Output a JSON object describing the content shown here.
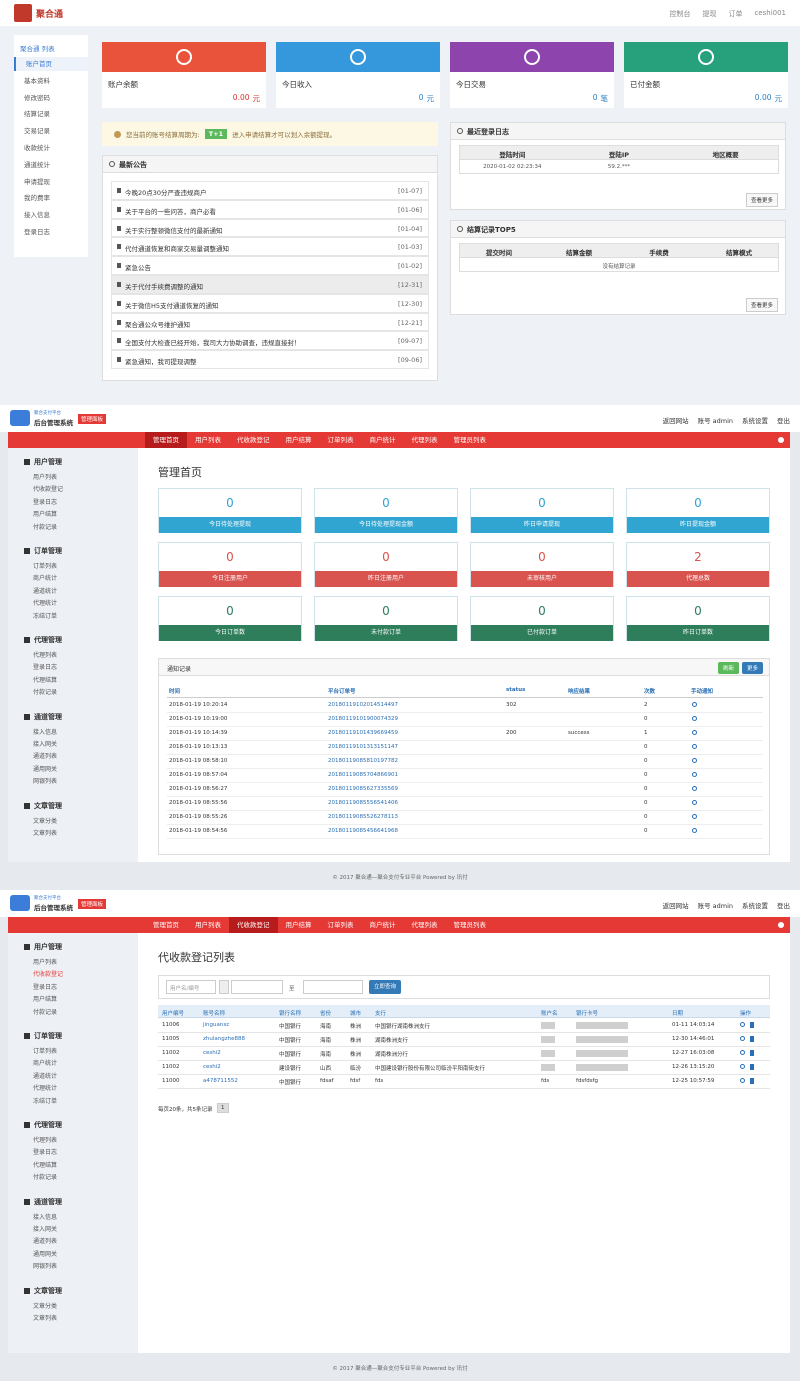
{
  "user_panel": {
    "brand": "聚合通",
    "top_links": [
      "控制台",
      "提现",
      "订单",
      "ceshi001"
    ],
    "sidebar": {
      "title": "聚合通 列表",
      "active": 0,
      "items": [
        "账户首页",
        "基本资料",
        "修改密码",
        "结算记录",
        "交易记录",
        "收款统计",
        "通道统计",
        "申请提现",
        "我的费率",
        "接入信息",
        "登录日志"
      ]
    },
    "cards": [
      {
        "label": "账户余额",
        "value": "0.00",
        "unit": "元",
        "color": "#e9533c",
        "value_color": "#d9342b"
      },
      {
        "label": "今日收入",
        "value": "0",
        "unit": "元",
        "color": "#3598dc",
        "value_color": "#2a7fc1"
      },
      {
        "label": "今日交易",
        "value": "0",
        "unit": "笔",
        "color": "#8e44ad",
        "value_color": "#2a7fc1"
      },
      {
        "label": "已付金额",
        "value": "0.00",
        "unit": "元",
        "color": "#26a17b",
        "value_color": "#2a7fc1"
      }
    ],
    "notice": {
      "prefix": "您当前的账号结算周期为:",
      "badge": "T+1",
      "suffix": "进入申请结算才可以划入余额提现。"
    },
    "announcements": {
      "title": "最新公告",
      "highlight": 5,
      "items": [
        {
          "text": "今晚20点30分严查违规商户",
          "date": "[01-07]"
        },
        {
          "text": "关于平台的一些问答，商户必看",
          "date": "[01-06]"
        },
        {
          "text": "关于实行整顿微信支付的最新通知",
          "date": "[01-04]"
        },
        {
          "text": "代付通道恢复和商家交易量调整通知",
          "date": "[01-03]"
        },
        {
          "text": "紧急公告",
          "date": "[01-02]"
        },
        {
          "text": "关于代付手续费调整的通知",
          "date": "[12-31]"
        },
        {
          "text": "关于微信H5支付通道恢复的通知",
          "date": "[12-30]"
        },
        {
          "text": "聚合通公众号维护通知",
          "date": "[12-21]"
        },
        {
          "text": "全国支付大检查已经开始，我司大力协助调查，违规直接封！",
          "date": "[09-07]"
        },
        {
          "text": "紧急通知，我司提现调整",
          "date": "[09-06]"
        }
      ]
    },
    "login_log": {
      "title": "最近登录日志",
      "headers": [
        "登陆时间",
        "登陆IP",
        "地区概要"
      ],
      "rows": [
        [
          "2020-01-02 02:23:34",
          "59.2.***"
        ]
      ],
      "button": "查看更多"
    },
    "settlements": {
      "title": "结算记录TOP5",
      "headers": [
        "提交时间",
        "结算金额",
        "手续费",
        "结算模式"
      ],
      "empty": "没有结算记录",
      "button": "查看更多"
    }
  },
  "admin_shell": {
    "logo_subtitle": "聚合支付平台",
    "logo_title": "后台管理系统",
    "badge": "管理面板",
    "top_links": [
      "返回网站",
      "账号 admin",
      "系统设置",
      "登出"
    ],
    "nav": [
      "管理首页",
      "用户列表",
      "代收款登记",
      "用户结算",
      "订单列表",
      "商户统计",
      "代理列表",
      "管理员列表"
    ],
    "sidebar": [
      {
        "title": "用户管理",
        "items": [
          "用户列表",
          "代收款登记",
          "登录日志",
          "用户结算",
          "付款记录"
        ]
      },
      {
        "title": "订单管理",
        "items": [
          "订单列表",
          "商户统计",
          "通道统计",
          "代理统计",
          "冻结订单"
        ]
      },
      {
        "title": "代理管理",
        "items": [
          "代理列表",
          "登录日志",
          "代理结算",
          "付款记录"
        ]
      },
      {
        "title": "通道管理",
        "items": [
          "接入信息",
          "接入网关",
          "通道列表",
          "通用网关",
          "网银列表"
        ]
      },
      {
        "title": "文章管理",
        "items": [
          "文章分类",
          "文章列表"
        ]
      }
    ],
    "footer": "© 2017 聚合通—聚合支付专业平台 Powered by 讯付"
  },
  "dashboard": {
    "active_nav": 0,
    "page_title": "管理首页",
    "stat_rows": [
      {
        "color": "#31a5d1",
        "items": [
          {
            "value": 0,
            "label": "今日待处理提现"
          },
          {
            "value": 0,
            "label": "今日待处理提现金额"
          },
          {
            "value": 0,
            "label": "昨日申请提现"
          },
          {
            "value": 0,
            "label": "昨日提现金额"
          }
        ]
      },
      {
        "color": "#d9534f",
        "items": [
          {
            "value": 0,
            "label": "今日注册用户"
          },
          {
            "value": 0,
            "label": "昨日注册用户"
          },
          {
            "value": 0,
            "label": "未审核用户"
          },
          {
            "value": 2,
            "label": "代理总数"
          }
        ]
      },
      {
        "color": "#2e7d5b",
        "items": [
          {
            "value": 0,
            "label": "今日订单数"
          },
          {
            "value": 0,
            "label": "未付款订单"
          },
          {
            "value": 0,
            "label": "已付款订单"
          },
          {
            "value": 0,
            "label": "昨日订单数"
          }
        ]
      }
    ],
    "notifications": {
      "title": "通知记录",
      "buttons": [
        "刷新",
        "更多"
      ],
      "headers": [
        "时间",
        "平台订单号",
        "status",
        "响应结果",
        "次数",
        "手动通知"
      ],
      "rows": [
        [
          "2018-01-19 10:20:14",
          "20180119102014514497",
          302,
          null,
          2
        ],
        [
          "2018-01-19 10:19:00",
          "20180119101900074329",
          null,
          null,
          0
        ],
        [
          "2018-01-19 10:14:39",
          "20180119101439669459",
          200,
          "success",
          1
        ],
        [
          "2018-01-19 10:13:13",
          "20180119101313151147",
          null,
          null,
          0
        ],
        [
          "2018-01-19 08:58:10",
          "20180119085810197782",
          null,
          null,
          0
        ],
        [
          "2018-01-19 08:57:04",
          "20180119085704866901",
          null,
          null,
          0
        ],
        [
          "2018-01-19 08:56:27",
          "20180119085627335569",
          null,
          null,
          0
        ],
        [
          "2018-01-19 08:55:56",
          "20180119085556541406",
          null,
          null,
          0
        ],
        [
          "2018-01-19 08:55:26",
          "20180119085526278113",
          null,
          null,
          0
        ],
        [
          "2018-01-19 08:54:56",
          "20180119085456641968",
          null,
          null,
          0
        ]
      ]
    }
  },
  "registrations": {
    "active_nav": 2,
    "active_sidebar": [
      0,
      1
    ],
    "page_title": "代收款登记列表",
    "search": {
      "placeholder": "用户名/编号",
      "separator": "至",
      "button": "立即查询"
    },
    "headers": [
      "用户编号",
      "账号名称",
      "银行名称",
      "省份",
      "城市",
      "支行",
      "账户名",
      "银行卡号",
      "日期",
      "操作"
    ],
    "rows": [
      [
        "11006",
        "jinguanxc",
        "中国银行",
        "海南",
        "株洲",
        "中国银行湖南株洲支行",
        null,
        null,
        "01-11 14:03:14"
      ],
      [
        "11005",
        "zhulangzhe888",
        "中国银行",
        "海南",
        "株洲",
        "湖南株洲支行",
        null,
        null,
        "12-30 14:46:01"
      ],
      [
        "11002",
        "ceshi2",
        "中国银行",
        "海南",
        "株洲",
        "湖南株洲分行",
        null,
        null,
        "12-27 16:03:08"
      ],
      [
        "11002",
        "ceshi2",
        "建设银行",
        "山西",
        "临汾",
        "中国建设银行股份有限公司临汾平阳南街支行",
        null,
        null,
        "12-26 13:15:20"
      ],
      [
        "11000",
        "a478711552",
        "中国银行",
        "fdsaf",
        "fdsf",
        "fds",
        "fds",
        "fdsfdsfg",
        "12-25 10:57:59"
      ]
    ],
    "pager": {
      "summary": "每页20条，共5条记录",
      "page": "1"
    }
  }
}
